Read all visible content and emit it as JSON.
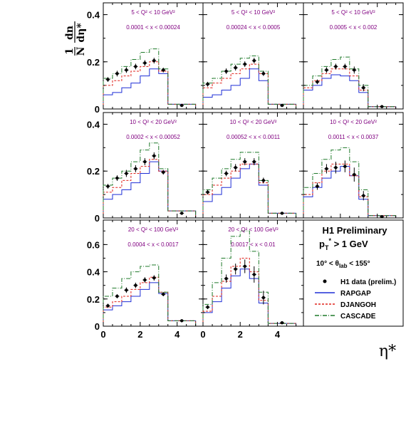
{
  "chart_data": {
    "type": "line",
    "xlabel": "η*",
    "ylabel": "1/N dn/dη*",
    "ylabel_parts": {
      "num": "1",
      "den": "N",
      "dn": "dn",
      "deta": "dη*"
    },
    "xlim": [
      0,
      5.4
    ],
    "x_ticks": [
      "0",
      "2",
      "4"
    ],
    "bin_edges": [
      0,
      0.5,
      1.0,
      1.5,
      2.0,
      2.5,
      3.0,
      3.5,
      4.0,
      5.0
    ],
    "panels": [
      {
        "q2": "5 < Q² < 10 GeV²",
        "x": "0.0001 < x < 0.00024",
        "ylim": [
          0,
          0.45
        ],
        "y_ticks": [
          "0",
          "0.2",
          "0.4"
        ],
        "data": [
          {
            "x": 0.25,
            "y": 0.125,
            "err": 0.01
          },
          {
            "x": 0.75,
            "y": 0.15,
            "err": 0.012
          },
          {
            "x": 1.25,
            "y": 0.165,
            "err": 0.012
          },
          {
            "x": 1.75,
            "y": 0.18,
            "err": 0.012
          },
          {
            "x": 2.25,
            "y": 0.195,
            "err": 0.012
          },
          {
            "x": 2.75,
            "y": 0.205,
            "err": 0.012
          },
          {
            "x": 3.25,
            "y": 0.165,
            "err": 0.01
          },
          {
            "x": 4.25,
            "y": 0.015,
            "err": 0.003
          }
        ],
        "series": [
          {
            "name": "RAPGAP",
            "values": [
              0.06,
              0.07,
              0.09,
              0.11,
              0.14,
              0.17,
              0.15,
              0.02,
              0.02
            ]
          },
          {
            "name": "DJANGOH",
            "values": [
              0.1,
              0.12,
              0.14,
              0.16,
              0.18,
              0.2,
              0.16,
              0.02,
              0.02
            ]
          },
          {
            "name": "CASCADE",
            "values": [
              0.13,
              0.15,
              0.18,
              0.21,
              0.24,
              0.255,
              0.17,
              0.02,
              0.02
            ]
          }
        ]
      },
      {
        "q2": "5 < Q² < 10 GeV²",
        "x": "0.00024 < x < 0.0005",
        "ylim": [
          0,
          0.45
        ],
        "y_ticks": [
          "0",
          "0.2",
          "0.4"
        ],
        "data": [
          {
            "x": 0.25,
            "y": 0.105,
            "err": 0.01
          },
          {
            "x": 1.25,
            "y": 0.16,
            "err": 0.012
          },
          {
            "x": 1.75,
            "y": 0.175,
            "err": 0.012
          },
          {
            "x": 2.25,
            "y": 0.19,
            "err": 0.012
          },
          {
            "x": 2.75,
            "y": 0.205,
            "err": 0.012
          },
          {
            "x": 3.25,
            "y": 0.15,
            "err": 0.01
          },
          {
            "x": 4.25,
            "y": 0.015,
            "err": 0.003
          }
        ],
        "series": [
          {
            "name": "RAPGAP",
            "values": [
              0.05,
              0.06,
              0.08,
              0.1,
              0.13,
              0.17,
              0.12,
              0.02,
              0.02
            ]
          },
          {
            "name": "DJANGOH",
            "values": [
              0.09,
              0.11,
              0.13,
              0.15,
              0.17,
              0.19,
              0.15,
              0.02,
              0.02
            ]
          },
          {
            "name": "CASCADE",
            "values": [
              0.11,
              0.13,
              0.16,
              0.19,
              0.215,
              0.225,
              0.16,
              0.02,
              0.02
            ]
          }
        ]
      },
      {
        "q2": "5 < Q² < 10 GeV²",
        "x": "0.0005 < x < 0.002",
        "ylim": [
          0,
          0.45
        ],
        "y_ticks": [
          "0",
          "0.2",
          "0.4"
        ],
        "data": [
          {
            "x": 0.75,
            "y": 0.115,
            "err": 0.01
          },
          {
            "x": 1.25,
            "y": 0.165,
            "err": 0.012
          },
          {
            "x": 1.75,
            "y": 0.18,
            "err": 0.012
          },
          {
            "x": 2.25,
            "y": 0.18,
            "err": 0.012
          },
          {
            "x": 2.75,
            "y": 0.165,
            "err": 0.015
          },
          {
            "x": 3.25,
            "y": 0.09,
            "err": 0.015
          },
          {
            "x": 4.25,
            "y": 0.01,
            "err": 0.003
          }
        ],
        "series": [
          {
            "name": "RAPGAP",
            "values": [
              0.08,
              0.1,
              0.13,
              0.145,
              0.14,
              0.12,
              0.07,
              0.01,
              0.01
            ]
          },
          {
            "name": "DJANGOH",
            "values": [
              0.09,
              0.12,
              0.15,
              0.17,
              0.17,
              0.14,
              0.08,
              0.01,
              0.01
            ]
          },
          {
            "name": "CASCADE",
            "values": [
              0.1,
              0.14,
              0.18,
              0.21,
              0.22,
              0.17,
              0.1,
              0.01,
              0.01
            ]
          }
        ]
      },
      {
        "q2": "10 < Q² < 20 GeV²",
        "x": "0.0002 < x < 0.00052",
        "ylim": [
          0,
          0.45
        ],
        "y_ticks": [
          "0",
          "0.2",
          "0.4"
        ],
        "data": [
          {
            "x": 0.25,
            "y": 0.135,
            "err": 0.01
          },
          {
            "x": 0.75,
            "y": 0.17,
            "err": 0.012
          },
          {
            "x": 1.25,
            "y": 0.19,
            "err": 0.015
          },
          {
            "x": 1.75,
            "y": 0.21,
            "err": 0.015
          },
          {
            "x": 2.25,
            "y": 0.24,
            "err": 0.015
          },
          {
            "x": 2.75,
            "y": 0.265,
            "err": 0.015
          },
          {
            "x": 3.25,
            "y": 0.195,
            "err": 0.01
          },
          {
            "x": 4.25,
            "y": 0.02,
            "err": 0.003
          }
        ],
        "series": [
          {
            "name": "RAPGAP",
            "values": [
              0.08,
              0.1,
              0.12,
              0.15,
              0.19,
              0.24,
              0.2,
              0.03,
              0.03
            ]
          },
          {
            "name": "DJANGOH",
            "values": [
              0.11,
              0.13,
              0.16,
              0.19,
              0.22,
              0.25,
              0.2,
              0.03,
              0.03
            ]
          },
          {
            "name": "CASCADE",
            "values": [
              0.14,
              0.17,
              0.2,
              0.24,
              0.29,
              0.32,
              0.21,
              0.03,
              0.03
            ]
          }
        ]
      },
      {
        "q2": "10 < Q² < 20 GeV²",
        "x": "0.00052 < x < 0.0011",
        "ylim": [
          0,
          0.45
        ],
        "y_ticks": [
          "0",
          "0.2",
          "0.4"
        ],
        "data": [
          {
            "x": 0.25,
            "y": 0.11,
            "err": 0.01
          },
          {
            "x": 1.25,
            "y": 0.19,
            "err": 0.012
          },
          {
            "x": 1.75,
            "y": 0.215,
            "err": 0.015
          },
          {
            "x": 2.25,
            "y": 0.24,
            "err": 0.015
          },
          {
            "x": 2.75,
            "y": 0.24,
            "err": 0.015
          },
          {
            "x": 3.25,
            "y": 0.16,
            "err": 0.012
          },
          {
            "x": 4.25,
            "y": 0.02,
            "err": 0.003
          }
        ],
        "series": [
          {
            "name": "RAPGAP",
            "values": [
              0.07,
              0.1,
              0.13,
              0.17,
              0.21,
              0.23,
              0.14,
              0.02,
              0.02
            ]
          },
          {
            "name": "DJANGOH",
            "values": [
              0.1,
              0.14,
              0.17,
              0.2,
              0.23,
              0.23,
              0.15,
              0.02,
              0.02
            ]
          },
          {
            "name": "CASCADE",
            "values": [
              0.12,
              0.17,
              0.21,
              0.25,
              0.28,
              0.28,
              0.16,
              0.02,
              0.02
            ]
          }
        ]
      },
      {
        "q2": "10 < Q² < 20 GeV²",
        "x": "0.0011 < x < 0.0037",
        "ylim": [
          0,
          0.45
        ],
        "y_ticks": [
          "0",
          "0.2",
          "0.4"
        ],
        "data": [
          {
            "x": 0.75,
            "y": 0.135,
            "err": 0.015
          },
          {
            "x": 1.25,
            "y": 0.21,
            "err": 0.02
          },
          {
            "x": 1.75,
            "y": 0.215,
            "err": 0.025
          },
          {
            "x": 2.25,
            "y": 0.22,
            "err": 0.025
          },
          {
            "x": 2.75,
            "y": 0.185,
            "err": 0.03
          },
          {
            "x": 3.25,
            "y": 0.095,
            "err": 0.02
          },
          {
            "x": 4.25,
            "y": 0.005,
            "err": 0.003
          }
        ],
        "series": [
          {
            "name": "RAPGAP",
            "values": [
              0.09,
              0.13,
              0.17,
              0.2,
              0.22,
              0.18,
              0.08,
              0.01,
              0.01
            ]
          },
          {
            "name": "DJANGOH",
            "values": [
              0.1,
              0.15,
              0.2,
              0.23,
              0.23,
              0.18,
              0.09,
              0.01,
              0.01
            ]
          },
          {
            "name": "CASCADE",
            "values": [
              0.13,
              0.19,
              0.25,
              0.29,
              0.3,
              0.24,
              0.12,
              0.01,
              0.01
            ]
          }
        ]
      },
      {
        "q2": "20 < Q² < 100 GeV²",
        "x": "0.0004 < x < 0.0017",
        "ylim": [
          0,
          0.78
        ],
        "y_ticks": [
          "0",
          "0.2",
          "0.4",
          "0.6"
        ],
        "data": [
          {
            "x": 0.25,
            "y": 0.15,
            "err": 0.015
          },
          {
            "x": 0.75,
            "y": 0.22,
            "err": 0.015
          },
          {
            "x": 1.25,
            "y": 0.265,
            "err": 0.02
          },
          {
            "x": 1.75,
            "y": 0.3,
            "err": 0.02
          },
          {
            "x": 2.25,
            "y": 0.34,
            "err": 0.02
          },
          {
            "x": 2.75,
            "y": 0.355,
            "err": 0.02
          },
          {
            "x": 3.25,
            "y": 0.235,
            "err": 0.015
          },
          {
            "x": 4.25,
            "y": 0.04,
            "err": 0.005
          }
        ],
        "series": [
          {
            "name": "RAPGAP",
            "values": [
              0.12,
              0.15,
              0.18,
              0.22,
              0.27,
              0.32,
              0.24,
              0.04,
              0.04
            ]
          },
          {
            "name": "DJANGOH",
            "values": [
              0.14,
              0.18,
              0.22,
              0.27,
              0.32,
              0.36,
              0.25,
              0.04,
              0.04
            ]
          },
          {
            "name": "CASCADE",
            "values": [
              0.22,
              0.28,
              0.35,
              0.4,
              0.44,
              0.45,
              0.25,
              0.04,
              0.04
            ]
          }
        ]
      },
      {
        "q2": "20 < Q² < 100 GeV²",
        "x": "0.0017 < x < 0.01",
        "ylim": [
          0,
          0.78
        ],
        "y_ticks": [
          "0",
          "0.2",
          "0.4",
          "0.6"
        ],
        "data": [
          {
            "x": 0.25,
            "y": 0.14,
            "err": 0.015
          },
          {
            "x": 1.25,
            "y": 0.35,
            "err": 0.03
          },
          {
            "x": 1.75,
            "y": 0.42,
            "err": 0.04
          },
          {
            "x": 2.25,
            "y": 0.44,
            "err": 0.05
          },
          {
            "x": 2.75,
            "y": 0.38,
            "err": 0.06
          },
          {
            "x": 3.25,
            "y": 0.21,
            "err": 0.05
          },
          {
            "x": 4.25,
            "y": 0.025,
            "err": 0.005
          }
        ],
        "series": [
          {
            "name": "RAPGAP",
            "values": [
              0.1,
              0.18,
              0.28,
              0.37,
              0.42,
              0.35,
              0.17,
              0.02,
              0.02
            ]
          },
          {
            "name": "DJANGOH",
            "values": [
              0.11,
              0.22,
              0.33,
              0.44,
              0.5,
              0.4,
              0.19,
              0.02,
              0.02
            ]
          },
          {
            "name": "CASCADE",
            "values": [
              0.16,
              0.32,
              0.5,
              0.66,
              0.7,
              0.55,
              0.25,
              0.02,
              0.02
            ]
          }
        ]
      }
    ],
    "legend": {
      "title": "H1 Preliminary",
      "pt_cut": {
        "base": "p",
        "sub": "T",
        "sup": "*",
        "rest": " > 1 GeV"
      },
      "theta_cut": {
        "pre": "10° < θ",
        "sub": "lab",
        "post": " < 155°"
      },
      "entries": [
        "H1 data (prelim.)",
        "RAPGAP",
        "DJANGOH",
        "CASCADE"
      ]
    },
    "colors": {
      "data": "#000000",
      "RAPGAP": "#1f2fd6",
      "DJANGOH": "#e0231b",
      "CASCADE": "#1f7a2a",
      "cut_text": "#800080"
    }
  }
}
